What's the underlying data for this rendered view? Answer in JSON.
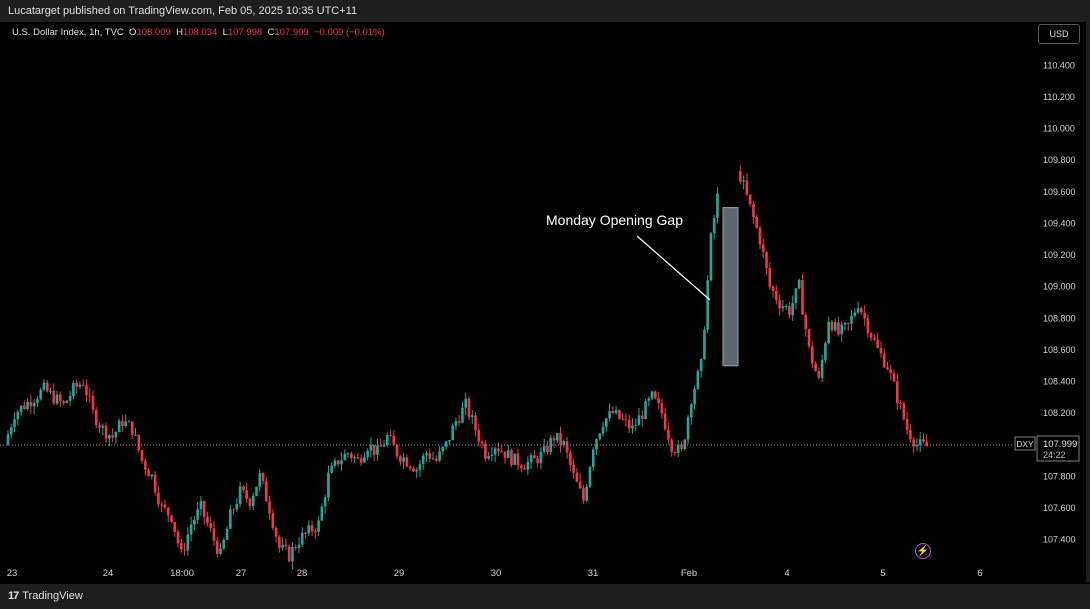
{
  "header": {
    "published": "Lucatarget published on TradingView.com, Feb 05, 2025 10:35 UTC+11"
  },
  "legend": {
    "symbol": "U.S. Dollar Index, 1h, TVC",
    "o_label": "O",
    "o": "108.009",
    "h_label": "H",
    "h": "108.034",
    "l_label": "L",
    "l": "107.998",
    "c_label": "C",
    "c": "107.999",
    "change": "−0.009 (−0.01%)"
  },
  "currency_button": "USD",
  "brand": {
    "name": "TradingView",
    "logo_icon": "tradingview-logo-icon"
  },
  "price_label": {
    "ticker": "DXY",
    "price": "107.999",
    "countdown": "24:22"
  },
  "annotation": {
    "text": "Monday Opening Gap"
  },
  "colors": {
    "up": "#26a69a",
    "down": "#f23645",
    "gap_box": "#5d6770",
    "gap_border": "#9aa4ad"
  },
  "chart_data": {
    "type": "candlestick",
    "symbol": "U.S. Dollar Index",
    "interval": "1h",
    "ylim": [
      107.24,
      110.56
    ],
    "y_ticks": [
      "110.400",
      "110.200",
      "110.000",
      "109.800",
      "109.600",
      "109.400",
      "109.200",
      "109.000",
      "108.800",
      "108.600",
      "108.400",
      "108.200",
      "107.800",
      "107.600",
      "107.400"
    ],
    "x_ticks": [
      "23",
      "24",
      "18:00",
      "27",
      "28",
      "29",
      "30",
      "31",
      "Feb",
      "4",
      "5",
      "6"
    ],
    "last_price": 107.999,
    "gap": {
      "from": 108.5,
      "to": 109.5
    },
    "close_path": [
      108.0,
      108.2,
      108.25,
      108.3,
      108.35,
      108.3,
      108.25,
      108.35,
      108.4,
      108.2,
      108.1,
      108.05,
      108.15,
      108.1,
      107.9,
      107.8,
      107.6,
      107.55,
      107.3,
      107.5,
      107.6,
      107.45,
      107.3,
      107.55,
      107.7,
      107.65,
      107.8,
      107.6,
      107.35,
      107.3,
      107.4,
      107.45,
      107.5,
      107.8,
      107.9,
      107.95,
      107.9,
      108.0,
      107.95,
      108.05,
      107.95,
      107.9,
      107.85,
      107.95,
      107.9,
      108.0,
      108.15,
      108.25,
      108.1,
      107.95,
      108.0,
      107.95,
      107.9,
      107.88,
      107.9,
      107.95,
      108.05,
      108.0,
      107.8,
      107.65,
      108.0,
      108.15,
      108.2,
      108.15,
      108.1,
      108.2,
      108.3,
      108.2,
      108.0,
      107.95,
      108.3,
      108.5,
      109.3,
      109.7,
      109.8,
      109.7,
      109.5,
      109.3,
      109.0,
      108.9,
      108.85,
      109.0,
      108.6,
      108.4,
      108.8,
      108.7,
      108.75,
      108.9,
      108.75,
      108.6,
      108.5,
      108.3,
      108.1,
      108.0,
      107.99
    ]
  }
}
